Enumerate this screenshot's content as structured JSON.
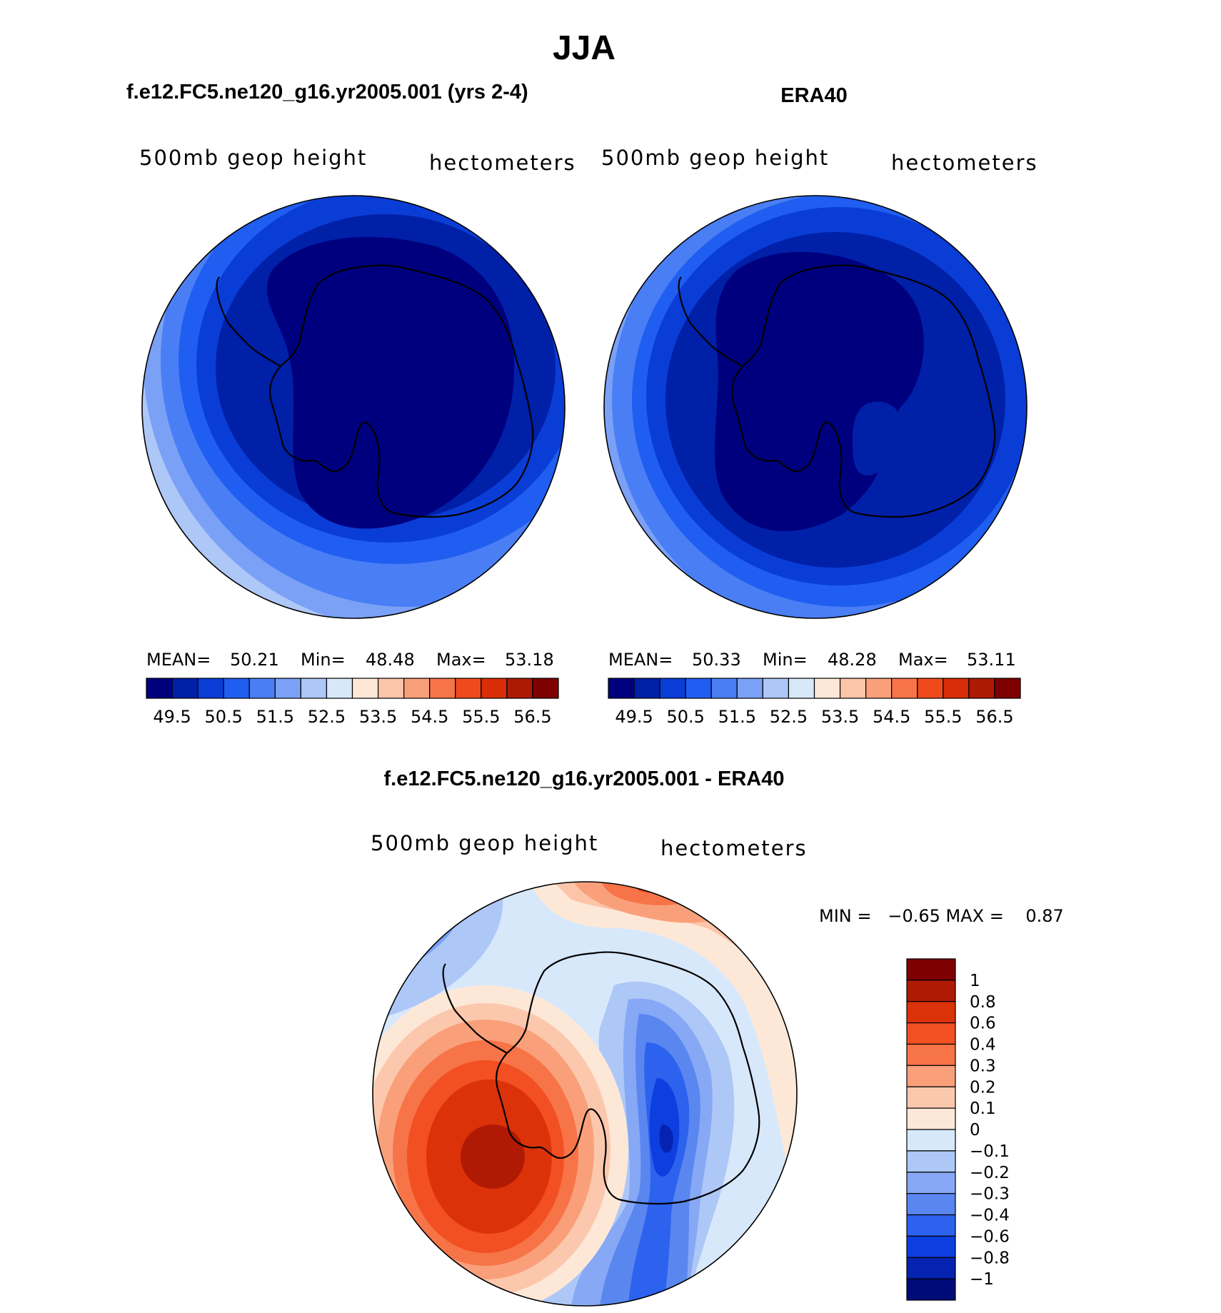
{
  "main_title": "JJA",
  "panels": [
    {
      "title": "f.e12.FC5.ne120_g16.yr2005.001 (yrs 2-4)",
      "left_label": "500mb geop height",
      "right_label": "hectometers",
      "stats": {
        "mean_label": "MEAN=",
        "mean": "50.21",
        "min_label": "Min=",
        "min": "48.48",
        "max_label": "Max=",
        "max": "53.18"
      }
    },
    {
      "title": "ERA40",
      "left_label": "500mb geop height",
      "right_label": "hectometers",
      "stats": {
        "mean_label": "MEAN=",
        "mean": "50.33",
        "min_label": "Min=",
        "min": "48.28",
        "max_label": "Max=",
        "max": "53.11"
      }
    }
  ],
  "diff_panel": {
    "title": "f.e12.FC5.ne120_g16.yr2005.001 - ERA40",
    "left_label": "500mb geop height",
    "right_label": "hectometers",
    "range_text": "MIN =   −0.65 MAX =    0.87"
  },
  "height_colorbar": {
    "colors": [
      "#00007f",
      "#0020a8",
      "#0a3dd6",
      "#1f5ef0",
      "#4a7ef5",
      "#7aa1f5",
      "#adc7f7",
      "#d8e8fb",
      "#fde8d8",
      "#fcc4a8",
      "#f9a07a",
      "#f77448",
      "#ee4a1c",
      "#d82d08",
      "#ad1a04",
      "#7e0000"
    ],
    "ticks": [
      "49.5",
      "50.5",
      "51.5",
      "52.5",
      "53.5",
      "54.5",
      "55.5",
      "56.5"
    ]
  },
  "diff_colorbar": {
    "colors": [
      "#7e0000",
      "#b01a04",
      "#dc320a",
      "#f25022",
      "#f77448",
      "#f9a07a",
      "#fcc8ad",
      "#fde8d8",
      "#d8e8fb",
      "#adc7f7",
      "#86a8f5",
      "#5a86f0",
      "#2c62ee",
      "#0d3ee0",
      "#0522b0",
      "#000b7a"
    ],
    "labels": [
      "1",
      "0.8",
      "0.6",
      "0.4",
      "0.3",
      "0.2",
      "0.1",
      "0",
      "−0.1",
      "−0.2",
      "−0.3",
      "−0.4",
      "−0.6",
      "−0.8",
      "−1"
    ]
  },
  "colors": {
    "map_outline": "#000000",
    "coastline": "#000000"
  }
}
